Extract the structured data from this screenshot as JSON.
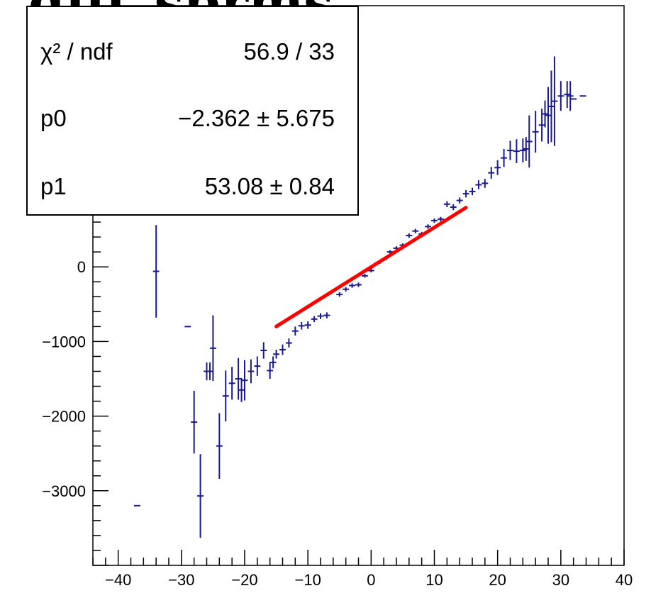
{
  "title": "diff_sprms",
  "stats": {
    "rows": [
      {
        "name": "χ² / ndf",
        "value": "56.9 / 33"
      },
      {
        "name": "p0",
        "value": "−2.362  ± 5.675"
      },
      {
        "name": "p1",
        "value": "53.08  ± 0.84"
      }
    ]
  },
  "colors": {
    "data": "#1a1a8c",
    "fit": "#ff0000",
    "axis": "#000000"
  },
  "chart_data": {
    "type": "scatter",
    "title": "diff_sprms",
    "xlabel": "",
    "ylabel": "",
    "xlim": [
      -44,
      40
    ],
    "ylim": [
      -4000,
      3500
    ],
    "x_ticks": [
      -40,
      -30,
      -20,
      -10,
      0,
      10,
      20,
      30,
      40
    ],
    "y_ticks": [
      -3000,
      -2000,
      -1000,
      0
    ],
    "x_tick_labels": [
      "−40",
      "−30",
      "−20",
      "−10",
      "0",
      "10",
      "20",
      "30",
      "40"
    ],
    "y_tick_labels": [
      "−3000",
      "−2000",
      "−1000",
      "0"
    ],
    "grid": false,
    "series": [
      {
        "points": [
          {
            "x": -37,
            "y": -3200,
            "ey": 0
          },
          {
            "x": -34,
            "y": -60,
            "ey": 620
          },
          {
            "x": -29,
            "y": -800,
            "ey": 0
          },
          {
            "x": -28,
            "y": -2080,
            "ey": 420
          },
          {
            "x": -27,
            "y": -3070,
            "ey": 560
          },
          {
            "x": -26,
            "y": -1400,
            "ey": 120
          },
          {
            "x": -25.5,
            "y": -1400,
            "ey": 120
          },
          {
            "x": -25,
            "y": -1090,
            "ey": 440
          },
          {
            "x": -24,
            "y": -2400,
            "ey": 440
          },
          {
            "x": -23,
            "y": -1730,
            "ey": 340
          },
          {
            "x": -22,
            "y": -1560,
            "ey": 220
          },
          {
            "x": -21,
            "y": -1500,
            "ey": 280
          },
          {
            "x": -20.5,
            "y": -1650,
            "ey": 160
          },
          {
            "x": -20,
            "y": -1520,
            "ey": 270
          },
          {
            "x": -19,
            "y": -1400,
            "ey": 160
          },
          {
            "x": -18,
            "y": -1330,
            "ey": 130
          },
          {
            "x": -17,
            "y": -1120,
            "ey": 110
          },
          {
            "x": -16,
            "y": -1390,
            "ey": 110
          },
          {
            "x": -15.5,
            "y": -1280,
            "ey": 80
          },
          {
            "x": -15,
            "y": -1170,
            "ey": 60
          },
          {
            "x": -14,
            "y": -1110,
            "ey": 70
          },
          {
            "x": -13,
            "y": -1020,
            "ey": 60
          },
          {
            "x": -12,
            "y": -860,
            "ey": 60
          },
          {
            "x": -11,
            "y": -790,
            "ey": 50
          },
          {
            "x": -10,
            "y": -780,
            "ey": 50
          },
          {
            "x": -9,
            "y": -700,
            "ey": 40
          },
          {
            "x": -8,
            "y": -660,
            "ey": 40
          },
          {
            "x": -7,
            "y": -650,
            "ey": 40
          },
          {
            "x": -5,
            "y": -370,
            "ey": 30
          },
          {
            "x": -4,
            "y": -300,
            "ey": 30
          },
          {
            "x": -3,
            "y": -250,
            "ey": 30
          },
          {
            "x": -2,
            "y": -240,
            "ey": 30
          },
          {
            "x": -1,
            "y": -120,
            "ey": 25
          },
          {
            "x": 0,
            "y": -50,
            "ey": 25
          },
          {
            "x": 1,
            "y": 50,
            "ey": 25
          },
          {
            "x": 2,
            "y": 100,
            "ey": 25
          },
          {
            "x": 3,
            "y": 200,
            "ey": 25
          },
          {
            "x": 4,
            "y": 250,
            "ey": 25
          },
          {
            "x": 5,
            "y": 290,
            "ey": 25
          },
          {
            "x": 6,
            "y": 420,
            "ey": 30
          },
          {
            "x": 7,
            "y": 480,
            "ey": 30
          },
          {
            "x": 8,
            "y": 440,
            "ey": 30
          },
          {
            "x": 9,
            "y": 540,
            "ey": 30
          },
          {
            "x": 10,
            "y": 620,
            "ey": 30
          },
          {
            "x": 11,
            "y": 640,
            "ey": 30
          },
          {
            "x": 12,
            "y": 840,
            "ey": 40
          },
          {
            "x": 13,
            "y": 800,
            "ey": 40
          },
          {
            "x": 14,
            "y": 890,
            "ey": 40
          },
          {
            "x": 15,
            "y": 980,
            "ey": 50
          },
          {
            "x": 16,
            "y": 1010,
            "ey": 50
          },
          {
            "x": 17,
            "y": 1100,
            "ey": 60
          },
          {
            "x": 18,
            "y": 1120,
            "ey": 60
          },
          {
            "x": 19,
            "y": 1260,
            "ey": 80
          },
          {
            "x": 20,
            "y": 1330,
            "ey": 100
          },
          {
            "x": 21,
            "y": 1460,
            "ey": 120
          },
          {
            "x": 22,
            "y": 1560,
            "ey": 130
          },
          {
            "x": 23,
            "y": 1550,
            "ey": 160
          },
          {
            "x": 24,
            "y": 1560,
            "ey": 160
          },
          {
            "x": 24.5,
            "y": 1580,
            "ey": 160
          },
          {
            "x": 25,
            "y": 1680,
            "ey": 350
          },
          {
            "x": 26,
            "y": 1810,
            "ey": 280
          },
          {
            "x": 27,
            "y": 1900,
            "ey": 220
          },
          {
            "x": 27.5,
            "y": 2050,
            "ey": 180
          },
          {
            "x": 28,
            "y": 2030,
            "ey": 380
          },
          {
            "x": 28.5,
            "y": 2150,
            "ey": 480
          },
          {
            "x": 29,
            "y": 2220,
            "ey": 600
          },
          {
            "x": 30,
            "y": 2290,
            "ey": 200
          },
          {
            "x": 31,
            "y": 2310,
            "ey": 180
          },
          {
            "x": 31.5,
            "y": 2290,
            "ey": 200
          },
          {
            "x": 32,
            "y": 2250,
            "ey": 0
          },
          {
            "x": 33.5,
            "y": 2290,
            "ey": 0
          }
        ]
      }
    ],
    "fit": {
      "function": "p0 + p1*x",
      "p0": -2.362,
      "p1": 53.08,
      "x_range": [
        -15,
        15
      ]
    }
  }
}
